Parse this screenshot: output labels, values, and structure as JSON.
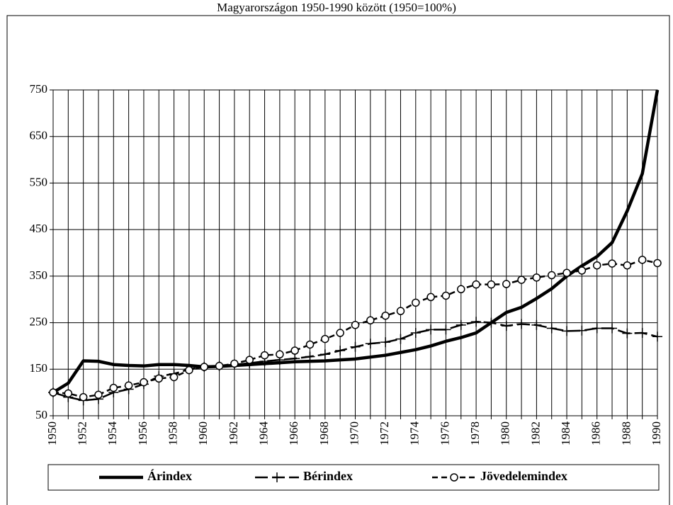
{
  "chart_data": {
    "type": "line",
    "title": "Magyarországon 1950-1990 között (1950=100%)",
    "x": [
      1950,
      1951,
      1952,
      1953,
      1954,
      1955,
      1956,
      1957,
      1958,
      1959,
      1960,
      1961,
      1962,
      1963,
      1964,
      1965,
      1966,
      1967,
      1968,
      1969,
      1970,
      1971,
      1972,
      1973,
      1974,
      1975,
      1976,
      1977,
      1978,
      1979,
      1980,
      1981,
      1982,
      1983,
      1984,
      1985,
      1986,
      1987,
      1988,
      1989,
      1990
    ],
    "series": [
      {
        "name": "Árindex",
        "color": "#000000",
        "dash": "solid",
        "marker": "none",
        "values": [
          100,
          120,
          168,
          167,
          160,
          158,
          157,
          160,
          160,
          158,
          155,
          156,
          158,
          160,
          162,
          164,
          166,
          167,
          168,
          170,
          172,
          176,
          180,
          186,
          192,
          200,
          210,
          218,
          228,
          250,
          272,
          283,
          302,
          323,
          350,
          372,
          392,
          422,
          490,
          570,
          750
        ]
      },
      {
        "name": "Bérindex",
        "color": "#000000",
        "dash": "longdash",
        "marker": "plus",
        "values": [
          100,
          90,
          83,
          86,
          100,
          107,
          118,
          135,
          140,
          150,
          155,
          157,
          160,
          163,
          167,
          170,
          173,
          177,
          182,
          190,
          198,
          205,
          208,
          215,
          228,
          235,
          235,
          245,
          252,
          250,
          243,
          247,
          245,
          238,
          232,
          233,
          238,
          238,
          227,
          228,
          220
        ]
      },
      {
        "name": "Jövedelemindex",
        "color": "#000000",
        "dash": "dashed",
        "marker": "circle",
        "values": [
          100,
          98,
          90,
          95,
          110,
          115,
          122,
          130,
          133,
          148,
          155,
          157,
          162,
          170,
          180,
          182,
          190,
          203,
          215,
          228,
          245,
          255,
          265,
          275,
          293,
          305,
          308,
          322,
          332,
          332,
          333,
          342,
          347,
          352,
          357,
          362,
          373,
          377,
          373,
          385,
          378
        ]
      }
    ],
    "xlim": [
      1950,
      1990
    ],
    "xticks": [
      1950,
      1952,
      1954,
      1956,
      1958,
      1960,
      1962,
      1964,
      1966,
      1968,
      1970,
      1972,
      1974,
      1976,
      1978,
      1980,
      1982,
      1984,
      1986,
      1988,
      1990
    ],
    "x_minor_ticks": [
      1951,
      1953,
      1955,
      1957,
      1959,
      1961,
      1963,
      1965,
      1967,
      1969,
      1971,
      1973,
      1975,
      1977,
      1979,
      1981,
      1983,
      1985,
      1987,
      1989
    ],
    "ylim": [
      50,
      750
    ],
    "yticks": [
      50,
      150,
      250,
      350,
      450,
      550,
      650,
      750
    ],
    "grid": true,
    "legend": "bottom"
  }
}
